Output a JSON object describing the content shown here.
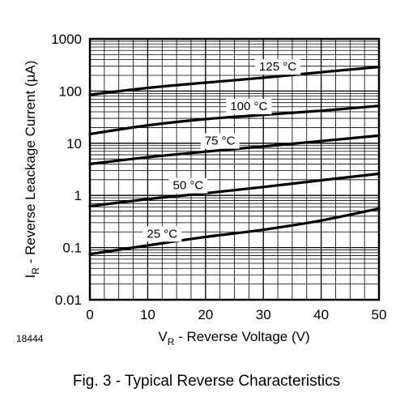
{
  "figure_id": "18444",
  "caption": "Fig. 3 - Typical Reverse Characteristics",
  "chart_data": {
    "type": "line",
    "title": "",
    "xlabel": {
      "main": "V",
      "sub": "R",
      "rest": " - Reverse Voltage (V)"
    },
    "ylabel": {
      "main": "I",
      "sub": "R",
      "rest": " - Reverse Leackage Current (µA)"
    },
    "xlim": [
      0,
      50
    ],
    "ylim": [
      0.01,
      1000
    ],
    "yscale": "log",
    "grid": true,
    "xticks": [
      0,
      10,
      20,
      30,
      40,
      50
    ],
    "xtick_labels": [
      "0",
      "10",
      "20",
      "30",
      "40",
      "50"
    ],
    "yticks": [
      0.01,
      0.1,
      1,
      10,
      100,
      1000
    ],
    "ytick_labels": [
      "0.01",
      "0.1",
      "1",
      "10",
      "100",
      "1000"
    ],
    "series": [
      {
        "name": "125 °C",
        "x": [
          0,
          10,
          20,
          30,
          40,
          50
        ],
        "y": [
          85,
          115,
          145,
          180,
          230,
          290
        ],
        "label_x": 32.5
      },
      {
        "name": "100 °C",
        "x": [
          0,
          10,
          20,
          30,
          40,
          50
        ],
        "y": [
          15,
          22,
          29,
          35,
          42,
          52
        ],
        "label_x": 27.5
      },
      {
        "name": "75 °C",
        "x": [
          0,
          10,
          20,
          30,
          40,
          50
        ],
        "y": [
          4.0,
          5.4,
          6.9,
          8.7,
          11,
          14
        ],
        "label_x": 22.5
      },
      {
        "name": "50 °C",
        "x": [
          0,
          10,
          20,
          30,
          40,
          50
        ],
        "y": [
          0.62,
          0.85,
          1.1,
          1.45,
          1.95,
          2.6
        ],
        "label_x": 17
      },
      {
        "name": "25 °C",
        "x": [
          0,
          10,
          20,
          30,
          40,
          50
        ],
        "y": [
          0.075,
          0.11,
          0.16,
          0.22,
          0.33,
          0.56
        ],
        "label_x": 12.5
      }
    ]
  }
}
